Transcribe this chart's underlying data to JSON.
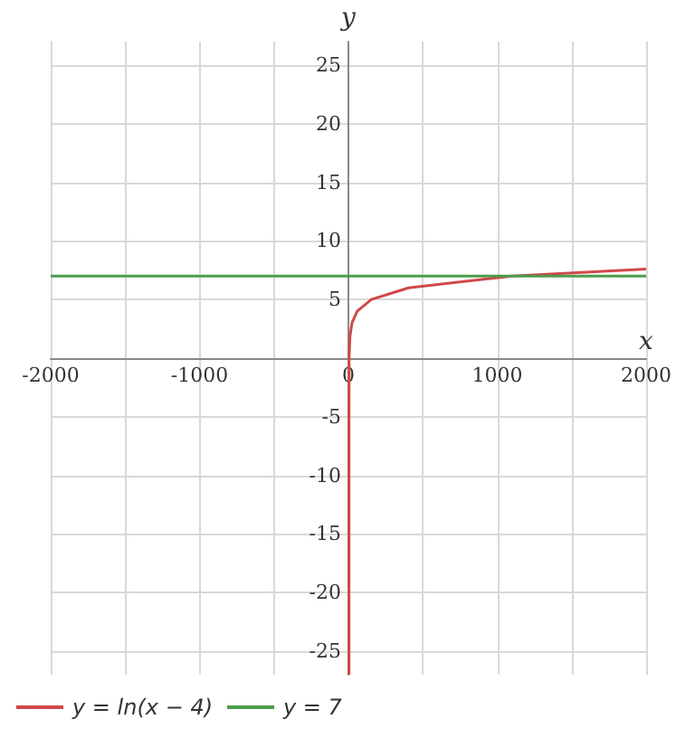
{
  "chart_data": {
    "type": "line",
    "xlabel": "x",
    "ylabel": "y",
    "xlim": [
      -2000,
      2000
    ],
    "xticks": [
      -2000,
      {
        "value": -1500,
        "label": null
      },
      -1000,
      {
        "value": -500,
        "label": null
      },
      0,
      {
        "value": 500,
        "label": null
      },
      1000,
      {
        "value": 1500,
        "label": null
      },
      2000
    ],
    "ylim": [
      -27,
      27
    ],
    "yticks": [
      -25,
      -20,
      -15,
      -10,
      -5,
      {
        "value": 0,
        "label": null
      },
      5,
      10,
      15,
      20,
      25
    ],
    "series": [
      {
        "name": "y = ln(x − 4)",
        "color": "#d04848",
        "x": [
          4,
          4,
          5,
          10,
          24,
          59,
          154,
          405,
          1100,
          2000
        ],
        "values": [
          -27,
          -5,
          0,
          1.8,
          3,
          4,
          5,
          6,
          7,
          7.6
        ]
      },
      {
        "name": "y = 7",
        "color": "#4c9c4c",
        "x": [
          -2000,
          2000
        ],
        "values": [
          7,
          7
        ]
      }
    ],
    "grid": true,
    "legend": "bottom left",
    "marker": "none",
    "line_style": "solid"
  }
}
